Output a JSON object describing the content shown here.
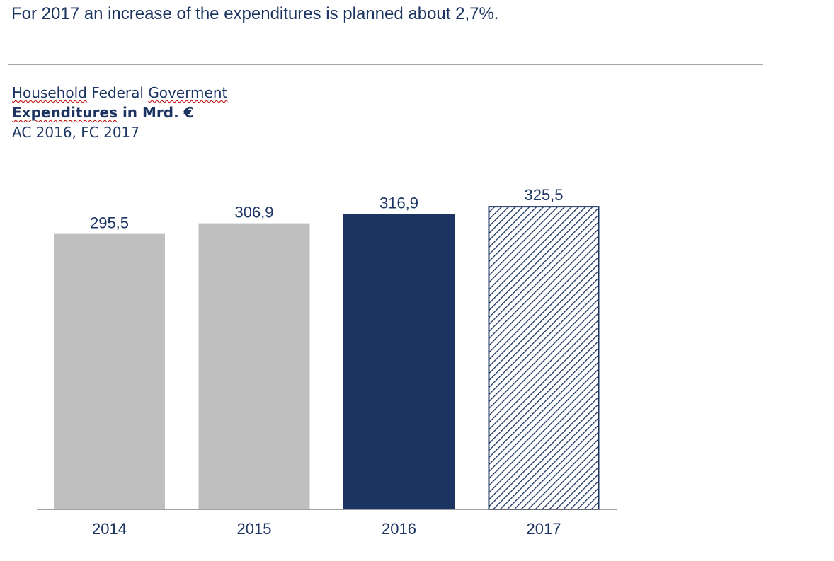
{
  "headline": "For 2017 an increase of the expenditures is planned about 2,7%.",
  "chart_header": {
    "line1_word1": "Household",
    "line1_word2": "Federal",
    "line1_word3": "Goverment",
    "line2_word1": "Expenditures",
    "line2_rest": "in Mrd. €",
    "line3": "AC 2016, FC 2017"
  },
  "colors": {
    "actual_past": "#bfbfbf",
    "actual_current": "#1c3461",
    "forecast": "#1c3461",
    "text": "#1c3461",
    "axis": "#808080"
  },
  "chart_data": {
    "type": "bar",
    "title": "Household Federal Goverment Expenditures in Mrd. €",
    "subtitle": "AC 2016, FC 2017",
    "xlabel": "",
    "ylabel": "",
    "categories": [
      "2014",
      "2015",
      "2016",
      "2017"
    ],
    "values": [
      295.5,
      306.9,
      316.9,
      325.5
    ],
    "data_labels": [
      "295,5",
      "306,9",
      "316,9",
      "325,5"
    ],
    "styles": [
      "past",
      "past",
      "actual",
      "forecast"
    ],
    "ylim": [
      0,
      325.5
    ],
    "grid": false,
    "legend": "none"
  }
}
